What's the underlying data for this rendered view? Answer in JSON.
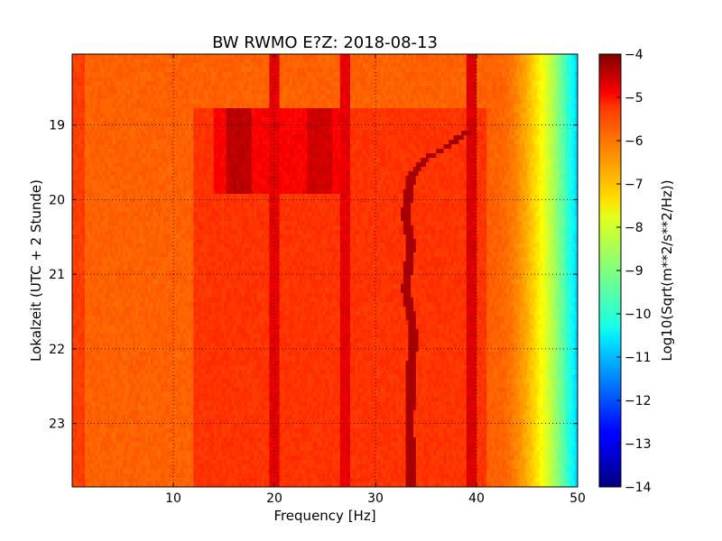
{
  "chart_data": {
    "type": "heatmap",
    "title": "BW RWMO E?Z: 2018-08-13",
    "xlabel": "Frequency [Hz]",
    "ylabel": "Lokalzeit (UTC + 2 Stunde)",
    "xlim": [
      0,
      50
    ],
    "ylim": [
      23.85,
      18.05
    ],
    "y_inverted": true,
    "x_ticks": [
      10,
      20,
      30,
      40,
      50
    ],
    "y_ticks": [
      19,
      20,
      21,
      22,
      23
    ],
    "grid": true,
    "grid_style": "dotted",
    "colormap": "jet",
    "colorbar": {
      "label": "Log10(Sqrt(m**2/s**2/Hz))",
      "range": [
        -14,
        -4
      ],
      "ticks": [
        -4,
        -5,
        -6,
        -7,
        -8,
        -9,
        -10,
        -11,
        -12,
        -13,
        -14
      ]
    },
    "features": [
      {
        "name": "background",
        "value": -6.2
      },
      {
        "name": "high-frequency rolloff",
        "freq_range": [
          42,
          50
        ],
        "value_at_50": -10.5
      },
      {
        "name": "broadband band",
        "freq_range": [
          14,
          27
        ],
        "time_range": [
          18.8,
          19.9
        ],
        "value": -5.2
      },
      {
        "name": "strong line",
        "freq": 16.5,
        "time_range": [
          18.8,
          19.9
        ],
        "value": -4.6
      },
      {
        "name": "strong line",
        "freq": 24.5,
        "time_range": [
          18.8,
          19.9
        ],
        "value": -4.8
      },
      {
        "name": "elevated band",
        "freq_range": [
          12,
          50
        ],
        "time_range": [
          18.8,
          24
        ],
        "value": -5.5
      },
      {
        "name": "vertical line",
        "freq": 20,
        "value": -5.0
      },
      {
        "name": "vertical line",
        "freq": 27,
        "value": -5.0
      },
      {
        "name": "vertical line",
        "freq": 39.5,
        "value": -4.9
      },
      {
        "name": "drifting line",
        "value": -4.4,
        "points": [
          [
            39.0,
            19.1
          ],
          [
            37.0,
            19.3
          ],
          [
            35.0,
            19.45
          ],
          [
            33.5,
            19.7
          ],
          [
            33.0,
            20.2
          ],
          [
            33.5,
            20.6
          ],
          [
            33.0,
            21.2
          ],
          [
            33.8,
            21.8
          ],
          [
            33.5,
            22.3
          ],
          [
            33.4,
            23.0
          ],
          [
            33.5,
            23.85
          ]
        ]
      }
    ]
  }
}
